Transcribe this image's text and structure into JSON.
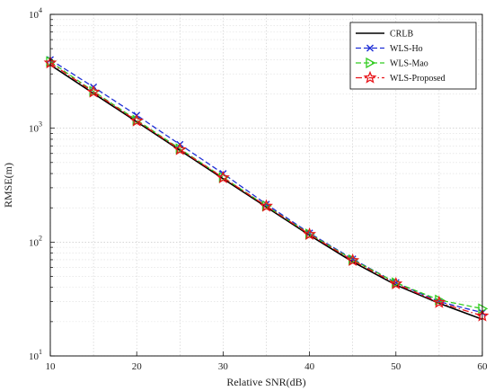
{
  "chart_data": {
    "type": "line",
    "xlabel": "Relative SNR(dB)",
    "ylabel": "RMSE(m)",
    "x": [
      10,
      15,
      20,
      25,
      30,
      35,
      40,
      45,
      50,
      55,
      60
    ],
    "xlim": [
      10,
      60
    ],
    "ylim": [
      10,
      10000
    ],
    "yscale": "log",
    "grid": true,
    "legend_position": "top-right",
    "x_ticks": [
      "10",
      "20",
      "30",
      "40",
      "50",
      "60"
    ],
    "y_ticks": [
      {
        "base": "10",
        "exp": "1"
      },
      {
        "base": "10",
        "exp": "2"
      },
      {
        "base": "10",
        "exp": "3"
      },
      {
        "base": "10",
        "exp": "4"
      }
    ],
    "series": [
      {
        "name": "CRLB",
        "color": "#000000",
        "dash": "solid",
        "marker": "none",
        "values": [
          3600,
          2020,
          1140,
          640,
          360,
          203,
          115,
          67,
          42,
          29,
          21
        ]
      },
      {
        "name": "WLS-Ho",
        "color": "#1f2fd6",
        "dash": "dashed",
        "marker": "x",
        "values": [
          4000,
          2300,
          1300,
          720,
          400,
          215,
          120,
          71,
          44,
          30,
          24
        ]
      },
      {
        "name": "WLS-Mao",
        "color": "#33cc22",
        "dash": "dashed",
        "marker": "triangle-right",
        "values": [
          3850,
          2110,
          1180,
          660,
          370,
          208,
          118,
          70,
          44,
          31,
          26
        ]
      },
      {
        "name": "WLS-Proposed",
        "color": "#e8151b",
        "dash": "dashdot",
        "marker": "star",
        "values": [
          3750,
          2080,
          1160,
          650,
          368,
          207,
          117,
          69,
          43,
          29.5,
          22.5
        ]
      }
    ]
  }
}
